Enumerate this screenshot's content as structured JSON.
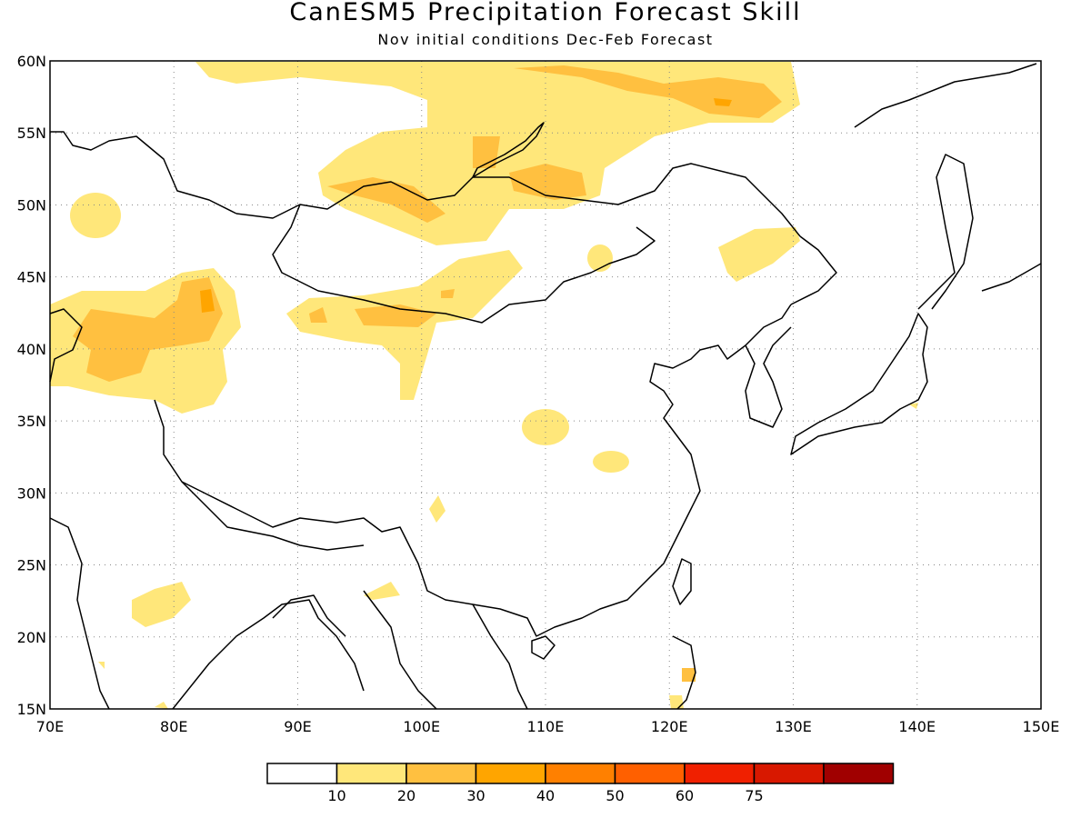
{
  "title": "CanESM5 Precipitation Forecast Skill",
  "subtitle": "Nov initial conditions  Dec-Feb Forecast",
  "map": {
    "region": {
      "lon_min": 70,
      "lon_max": 150,
      "lat_min": 15,
      "lat_max": 60
    },
    "lon_labels": [
      "70E",
      "80E",
      "90E",
      "100E",
      "110E",
      "120E",
      "130E",
      "140E",
      "150E"
    ],
    "lat_labels": [
      "60N",
      "55N",
      "50N",
      "45N",
      "40N",
      "35N",
      "30N",
      "25N",
      "20N",
      "15N"
    ],
    "grid": "dotted"
  },
  "legend": {
    "levels": [
      "10",
      "20",
      "30",
      "40",
      "50",
      "60",
      "75"
    ],
    "colors": [
      "#ffffff",
      "#ffe77a",
      "#ffc040",
      "#ffa500",
      "#ff8000",
      "#ff6000",
      "#f02000",
      "#d81800",
      "#a00000"
    ]
  }
}
